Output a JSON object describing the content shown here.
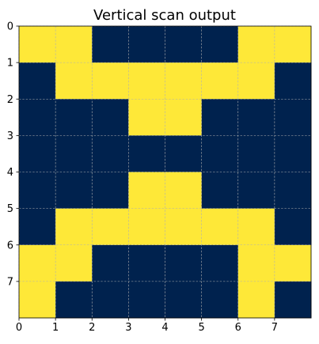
{
  "chart_data": {
    "type": "heatmap",
    "title": "Vertical scan output",
    "xlabel": "",
    "ylabel": "",
    "x_ticks": [
      "0",
      "1",
      "2",
      "3",
      "4",
      "5",
      "6",
      "7"
    ],
    "y_ticks": [
      "0",
      "1",
      "2",
      "3",
      "4",
      "5",
      "6",
      "7"
    ],
    "xlim": [
      0,
      8
    ],
    "ylim": [
      8,
      0
    ],
    "y_axis_inverted": true,
    "grid": true,
    "colormap": "cividis",
    "colors": {
      "low": "#00224e",
      "high": "#fee838",
      "grid": "#b0b0b0",
      "frame": "#000000"
    },
    "values": [
      [
        1,
        1,
        0,
        0,
        0,
        0,
        1,
        1
      ],
      [
        0,
        1,
        1,
        1,
        1,
        1,
        1,
        0
      ],
      [
        0,
        0,
        0,
        1,
        1,
        0,
        0,
        0
      ],
      [
        0,
        0,
        0,
        0,
        0,
        0,
        0,
        0
      ],
      [
        0,
        0,
        0,
        1,
        1,
        0,
        0,
        0
      ],
      [
        0,
        1,
        1,
        1,
        1,
        1,
        1,
        0
      ],
      [
        1,
        1,
        0,
        0,
        0,
        0,
        1,
        1
      ],
      [
        1,
        0,
        0,
        0,
        0,
        0,
        1,
        0
      ]
    ]
  }
}
